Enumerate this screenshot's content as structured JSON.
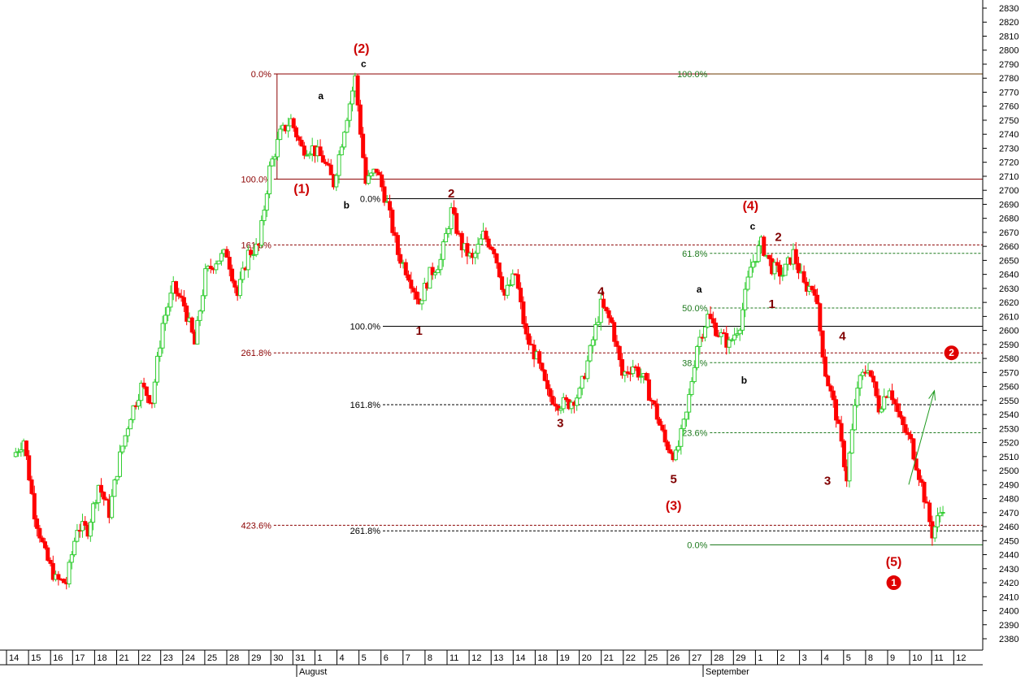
{
  "chart_data": {
    "type": "candlestick",
    "y_axis": {
      "ticks": [
        2380,
        2390,
        2400,
        2410,
        2420,
        2430,
        2440,
        2450,
        2460,
        2470,
        2480,
        2490,
        2500,
        2510,
        2520,
        2530,
        2540,
        2550,
        2560,
        2570,
        2580,
        2590,
        2600,
        2610,
        2620,
        2630,
        2640,
        2650,
        2660,
        2670,
        2680,
        2690,
        2700,
        2710,
        2720,
        2730,
        2740,
        2750,
        2760,
        2770,
        2780,
        2790,
        2800,
        2810,
        2820,
        2830
      ],
      "ylim": [
        2375,
        2838
      ],
      "labels": [
        "2380",
        "2390",
        "2400",
        "2410",
        "2420",
        "2430",
        "2440",
        "2450",
        "2460",
        "2470",
        "2480",
        "2490",
        "2500",
        "2510",
        "2520",
        "2530",
        "2540",
        "2550",
        "2560",
        "2570",
        "2580",
        "2590",
        "2600",
        "2610",
        "2620",
        "2630",
        "2640",
        "2650",
        "2660",
        "2670",
        "2680",
        "2690",
        "2700",
        "2710",
        "2720",
        "2730",
        "2740",
        "2750",
        "2760",
        "2770",
        "2780",
        "2790",
        "2800",
        "2810",
        "2820",
        "2830"
      ]
    },
    "x_axis": {
      "day_labels": [
        "14",
        "15",
        "16",
        "17",
        "18",
        "21",
        "22",
        "23",
        "24",
        "25",
        "28",
        "29",
        "30",
        "31",
        "1",
        "4",
        "5",
        "6",
        "7",
        "8",
        "11",
        "12",
        "13",
        "14",
        "18",
        "19",
        "20",
        "21",
        "22",
        "25",
        "26",
        "27",
        "28",
        "29",
        "1",
        "2",
        "3",
        "4",
        "5",
        "8",
        "9",
        "10",
        "11",
        "12"
      ],
      "month_labels": [
        "August",
        "September"
      ]
    },
    "price_path": [
      {
        "d": 0,
        "v": 2510
      },
      {
        "d": 0.5,
        "v": 2522
      },
      {
        "d": 1,
        "v": 2470
      },
      {
        "d": 1.5,
        "v": 2440
      },
      {
        "d": 2,
        "v": 2422
      },
      {
        "d": 2.5,
        "v": 2420
      },
      {
        "d": 3,
        "v": 2460
      },
      {
        "d": 3.5,
        "v": 2458
      },
      {
        "d": 4,
        "v": 2490
      },
      {
        "d": 4.5,
        "v": 2470
      },
      {
        "d": 5,
        "v": 2510
      },
      {
        "d": 5.5,
        "v": 2540
      },
      {
        "d": 6,
        "v": 2560
      },
      {
        "d": 6.5,
        "v": 2550
      },
      {
        "d": 7,
        "v": 2605
      },
      {
        "d": 7.5,
        "v": 2630
      },
      {
        "d": 8,
        "v": 2618
      },
      {
        "d": 8.5,
        "v": 2590
      },
      {
        "d": 9,
        "v": 2640
      },
      {
        "d": 9.5,
        "v": 2650
      },
      {
        "d": 10,
        "v": 2655
      },
      {
        "d": 10.5,
        "v": 2625
      },
      {
        "d": 11,
        "v": 2655
      },
      {
        "d": 11.5,
        "v": 2660
      },
      {
        "d": 12,
        "v": 2715
      },
      {
        "d": 12.5,
        "v": 2740
      },
      {
        "d": 13,
        "v": 2750
      },
      {
        "d": 13.5,
        "v": 2730
      },
      {
        "d": 14,
        "v": 2730
      },
      {
        "d": 14.5,
        "v": 2722
      },
      {
        "d": 15,
        "v": 2705
      },
      {
        "d": 15.5,
        "v": 2745
      },
      {
        "d": 16,
        "v": 2780
      },
      {
        "d": 16.5,
        "v": 2705
      },
      {
        "d": 17,
        "v": 2715
      },
      {
        "d": 17.5,
        "v": 2690
      },
      {
        "d": 18,
        "v": 2655
      },
      {
        "d": 18.5,
        "v": 2640
      },
      {
        "d": 19,
        "v": 2620
      },
      {
        "d": 19.5,
        "v": 2640
      },
      {
        "d": 20,
        "v": 2650
      },
      {
        "d": 20.5,
        "v": 2685
      },
      {
        "d": 21,
        "v": 2660
      },
      {
        "d": 21.5,
        "v": 2650
      },
      {
        "d": 22,
        "v": 2668
      },
      {
        "d": 22.5,
        "v": 2658
      },
      {
        "d": 23,
        "v": 2625
      },
      {
        "d": 23.5,
        "v": 2640
      },
      {
        "d": 24,
        "v": 2595
      },
      {
        "d": 24.5,
        "v": 2580
      },
      {
        "d": 25,
        "v": 2555
      },
      {
        "d": 25.5,
        "v": 2548
      },
      {
        "d": 26,
        "v": 2548
      },
      {
        "d": 26.5,
        "v": 2555
      },
      {
        "d": 27,
        "v": 2585
      },
      {
        "d": 27.5,
        "v": 2618
      },
      {
        "d": 28,
        "v": 2605
      },
      {
        "d": 28.5,
        "v": 2568
      },
      {
        "d": 29,
        "v": 2575
      },
      {
        "d": 29.5,
        "v": 2565
      },
      {
        "d": 30,
        "v": 2545
      },
      {
        "d": 30.5,
        "v": 2520
      },
      {
        "d": 31,
        "v": 2510
      },
      {
        "d": 31.5,
        "v": 2540
      },
      {
        "d": 32,
        "v": 2590
      },
      {
        "d": 32.5,
        "v": 2610
      },
      {
        "d": 33,
        "v": 2598
      },
      {
        "d": 33.5,
        "v": 2590
      },
      {
        "d": 34,
        "v": 2605
      },
      {
        "d": 34.5,
        "v": 2645
      },
      {
        "d": 35,
        "v": 2662
      },
      {
        "d": 35.5,
        "v": 2645
      },
      {
        "d": 36,
        "v": 2640
      },
      {
        "d": 36.5,
        "v": 2655
      },
      {
        "d": 37,
        "v": 2632
      },
      {
        "d": 37.5,
        "v": 2630
      },
      {
        "d": 38,
        "v": 2570
      },
      {
        "d": 38.5,
        "v": 2540
      },
      {
        "d": 39,
        "v": 2495
      },
      {
        "d": 39.5,
        "v": 2560
      },
      {
        "d": 40,
        "v": 2575
      },
      {
        "d": 40.5,
        "v": 2545
      },
      {
        "d": 41,
        "v": 2560
      },
      {
        "d": 41.5,
        "v": 2535
      },
      {
        "d": 42,
        "v": 2520
      },
      {
        "d": 42.5,
        "v": 2490
      },
      {
        "d": 43,
        "v": 2455
      },
      {
        "d": 43.5,
        "v": 2475
      }
    ],
    "horizontal_levels": [
      {
        "price": 2783,
        "from_day": 12.2,
        "to_day": 48,
        "color": "#8b0000",
        "style": "solid",
        "label": "0.0%",
        "label_color": "red",
        "label_day": 11.3
      },
      {
        "price": 2708,
        "from_day": 12.2,
        "to_day": 48,
        "color": "#8b0000",
        "style": "solid",
        "label": "100.0%",
        "label_color": "red",
        "label_day": 11.3
      },
      {
        "price": 2661,
        "from_day": 12.2,
        "to_day": 48,
        "color": "#8b0000",
        "style": "dashed",
        "label": "161.8%",
        "label_color": "red",
        "label_day": 11.3
      },
      {
        "price": 2584,
        "from_day": 12.2,
        "to_day": 48,
        "color": "#8b0000",
        "style": "dashed",
        "label": "261.8%",
        "label_color": "red",
        "label_day": 11.3
      },
      {
        "price": 2461,
        "from_day": 12.2,
        "to_day": 48,
        "color": "#8b0000",
        "style": "dashed",
        "label": "423.6%",
        "label_color": "red",
        "label_day": 11.3
      },
      {
        "price": 2694,
        "from_day": 17.3,
        "to_day": 48,
        "color": "#000000",
        "style": "solid",
        "label": "0.0%",
        "label_color": "black",
        "label_day": 16.5
      },
      {
        "price": 2603,
        "from_day": 17.3,
        "to_day": 48,
        "color": "#000000",
        "style": "solid",
        "label": "100.0%",
        "label_color": "black",
        "label_day": 16.5
      },
      {
        "price": 2547,
        "from_day": 17.3,
        "to_day": 48,
        "color": "#000000",
        "style": "dashed",
        "label": "161.8%",
        "label_color": "black",
        "label_day": 16.5
      },
      {
        "price": 2457,
        "from_day": 17.3,
        "to_day": 48,
        "color": "#000000",
        "style": "dashed",
        "label": "261.8%",
        "label_color": "black",
        "label_day": 16.5
      },
      {
        "price": 2783,
        "from_day": 32.6,
        "to_day": 48,
        "color": "#6b3a00",
        "style": "solid",
        "label": "100.0%",
        "label_color": "green",
        "label_day": 31.8
      },
      {
        "price": 2655,
        "from_day": 32.6,
        "to_day": 48,
        "color": "#1f7a1f",
        "style": "dashed",
        "label": "61.8%",
        "label_color": "green",
        "label_day": 31.8
      },
      {
        "price": 2616,
        "from_day": 32.6,
        "to_day": 48,
        "color": "#1f7a1f",
        "style": "dashed",
        "label": "50.0%",
        "label_color": "green",
        "label_day": 31.8
      },
      {
        "price": 2577,
        "from_day": 32.6,
        "to_day": 48,
        "color": "#1f7a1f",
        "style": "dashed",
        "label": "38.2%",
        "label_color": "green",
        "label_day": 31.8
      },
      {
        "price": 2527,
        "from_day": 32.6,
        "to_day": 48,
        "color": "#1f7a1f",
        "style": "dashed",
        "label": "23.6%",
        "label_color": "green",
        "label_day": 31.8
      },
      {
        "price": 2447,
        "from_day": 32.6,
        "to_day": 48,
        "color": "#1f7a1f",
        "style": "solid",
        "label": "0.0%",
        "label_color": "green",
        "label_day": 31.8
      }
    ],
    "wave_labels": [
      {
        "text": "(1)",
        "day": 13.5,
        "price": 2698,
        "style": "big"
      },
      {
        "text": "(2)",
        "day": 16.3,
        "price": 2798,
        "style": "big"
      },
      {
        "text": "c",
        "day": 16.4,
        "price": 2788,
        "style": "small"
      },
      {
        "text": "a",
        "day": 14.4,
        "price": 2765,
        "style": "small"
      },
      {
        "text": "b",
        "day": 15.6,
        "price": 2687,
        "style": "small"
      },
      {
        "text": "2",
        "day": 20.5,
        "price": 2695,
        "style": "mid"
      },
      {
        "text": "1",
        "day": 19.0,
        "price": 2597,
        "style": "mid"
      },
      {
        "text": "4",
        "day": 27.5,
        "price": 2625,
        "style": "mid"
      },
      {
        "text": "3",
        "day": 25.6,
        "price": 2531,
        "style": "mid"
      },
      {
        "text": "5",
        "day": 30.9,
        "price": 2491,
        "style": "mid"
      },
      {
        "text": "(3)",
        "day": 30.9,
        "price": 2472,
        "style": "big"
      },
      {
        "text": "a",
        "day": 32.1,
        "price": 2627,
        "style": "small"
      },
      {
        "text": "b",
        "day": 34.2,
        "price": 2562,
        "style": "small"
      },
      {
        "text": "(4)",
        "day": 34.5,
        "price": 2686,
        "style": "big"
      },
      {
        "text": "c",
        "day": 34.6,
        "price": 2672,
        "style": "small"
      },
      {
        "text": "2",
        "day": 35.8,
        "price": 2664,
        "style": "mid"
      },
      {
        "text": "1",
        "day": 35.5,
        "price": 2616,
        "style": "mid"
      },
      {
        "text": "4",
        "day": 38.8,
        "price": 2593,
        "style": "mid"
      },
      {
        "text": "3",
        "day": 38.1,
        "price": 2490,
        "style": "mid"
      },
      {
        "text": "(5)",
        "day": 41.2,
        "price": 2432,
        "style": "big"
      }
    ],
    "circle_markers": [
      {
        "text": "❶",
        "day": 41.2,
        "price": 2420
      },
      {
        "text": "❷",
        "day": 43.9,
        "price": 2584
      }
    ],
    "projection_arrow": {
      "from_day": 41.9,
      "from_price": 2490,
      "to_day": 43.1,
      "to_price": 2557
    },
    "colors": {
      "up": "#32cd32",
      "down": "#ff0000",
      "grid": "#000000",
      "arrow": "#1f9a1f"
    }
  }
}
